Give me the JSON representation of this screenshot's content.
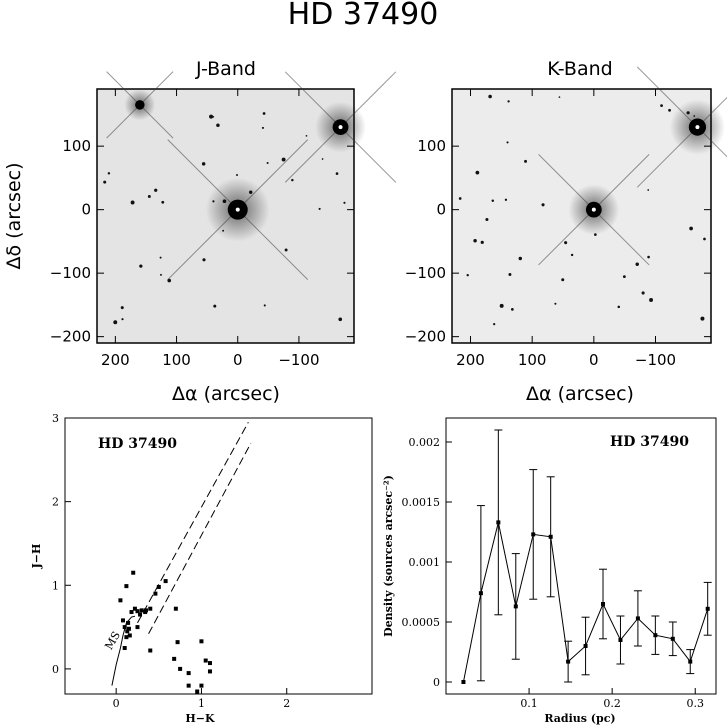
{
  "main_title": "HD 37490",
  "chart_data": [
    {
      "type": "image",
      "title": "J-Band",
      "xlabel": "Δα (arcsec)",
      "ylabel": "Δδ (arcsec)",
      "xlim": [
        230,
        -190
      ],
      "ylim": [
        -210,
        190
      ],
      "xticks": [
        "200",
        "100",
        "0",
        "−100"
      ],
      "yticks": [
        "100",
        "0",
        "−100",
        "−200"
      ],
      "bright_stars": [
        {
          "x": 0,
          "y": 0,
          "mag": 1.0
        },
        {
          "x": -168,
          "y": 130,
          "mag": 0.7
        },
        {
          "x": 160,
          "y": 165,
          "mag": 0.25
        }
      ]
    },
    {
      "type": "image",
      "title": "K-Band",
      "xlabel": "Δα (arcsec)",
      "xlim": [
        230,
        -190
      ],
      "ylim": [
        -210,
        190
      ],
      "xticks": [
        "200",
        "100",
        "0",
        "−100"
      ],
      "yticks": [
        "100",
        "0",
        "−100",
        "−200"
      ],
      "bright_stars": [
        {
          "x": 0,
          "y": 0,
          "mag": 0.7
        },
        {
          "x": -168,
          "y": 130,
          "mag": 0.8
        }
      ]
    },
    {
      "type": "scatter",
      "annotation": "HD 37490",
      "xlabel": "H−K",
      "ylabel": "J−H",
      "xlim": [
        -0.6,
        3.0
      ],
      "ylim": [
        -0.3,
        3.0
      ],
      "xticks": [
        0,
        1,
        2
      ],
      "yticks": [
        0,
        1,
        2,
        3
      ],
      "ms_label": "MS",
      "points": [
        [
          0.12,
          0.99
        ],
        [
          0.2,
          1.15
        ],
        [
          0.05,
          0.82
        ],
        [
          0.08,
          0.58
        ],
        [
          0.1,
          0.5
        ],
        [
          0.13,
          0.45
        ],
        [
          0.15,
          0.48
        ],
        [
          0.12,
          0.38
        ],
        [
          0.18,
          0.68
        ],
        [
          0.22,
          0.72
        ],
        [
          0.25,
          0.69
        ],
        [
          0.3,
          0.7
        ],
        [
          0.35,
          0.7
        ],
        [
          0.4,
          0.72
        ],
        [
          0.28,
          0.65
        ],
        [
          0.34,
          0.68
        ],
        [
          0.25,
          0.5
        ],
        [
          0.5,
          0.98
        ],
        [
          0.58,
          1.05
        ],
        [
          0.46,
          0.9
        ],
        [
          0.7,
          0.72
        ],
        [
          0.4,
          0.22
        ],
        [
          0.72,
          0.32
        ],
        [
          0.68,
          0.12
        ],
        [
          0.75,
          0.0
        ],
        [
          0.85,
          -0.05
        ],
        [
          0.85,
          -0.2
        ],
        [
          0.95,
          -0.27
        ],
        [
          1.0,
          0.33
        ],
        [
          1.05,
          0.1
        ],
        [
          1.1,
          0.07
        ],
        [
          1.1,
          -0.03
        ],
        [
          1.0,
          -0.2
        ],
        [
          0.1,
          0.25
        ],
        [
          0.14,
          0.55
        ],
        [
          0.16,
          0.4
        ]
      ],
      "reddening_lines": [
        [
          [
            0.25,
            0.55
          ],
          [
            1.55,
            2.95
          ]
        ],
        [
          [
            0.38,
            0.42
          ],
          [
            1.58,
            2.7
          ]
        ]
      ]
    },
    {
      "type": "line",
      "annotation": "HD 37490",
      "xlabel": "Radius (pc)",
      "ylabel": "Density (sources arcsec⁻²)",
      "xlim": [
        0.0,
        0.325
      ],
      "ylim": [
        -0.0001,
        0.0022
      ],
      "xticks": [
        "0.1",
        "0.2",
        "0.3"
      ],
      "yticks": [
        "0",
        "0.0005",
        "0.001",
        "0.0015",
        "0.002"
      ],
      "x": [
        0.021,
        0.042,
        0.063,
        0.084,
        0.105,
        0.126,
        0.147,
        0.168,
        0.189,
        0.21,
        0.231,
        0.252,
        0.273,
        0.294,
        0.315
      ],
      "y": [
        0.0,
        0.00074,
        0.00133,
        0.00063,
        0.00123,
        0.00121,
        0.00017,
        0.0003,
        0.00065,
        0.00035,
        0.00053,
        0.00039,
        0.00036,
        0.00017,
        0.00061
      ],
      "err": [
        0.0,
        0.00073,
        0.00077,
        0.00044,
        0.00054,
        0.0005,
        0.00017,
        0.00024,
        0.00029,
        0.0002,
        0.00023,
        0.00016,
        0.00014,
        0.0001,
        0.00022
      ]
    }
  ]
}
